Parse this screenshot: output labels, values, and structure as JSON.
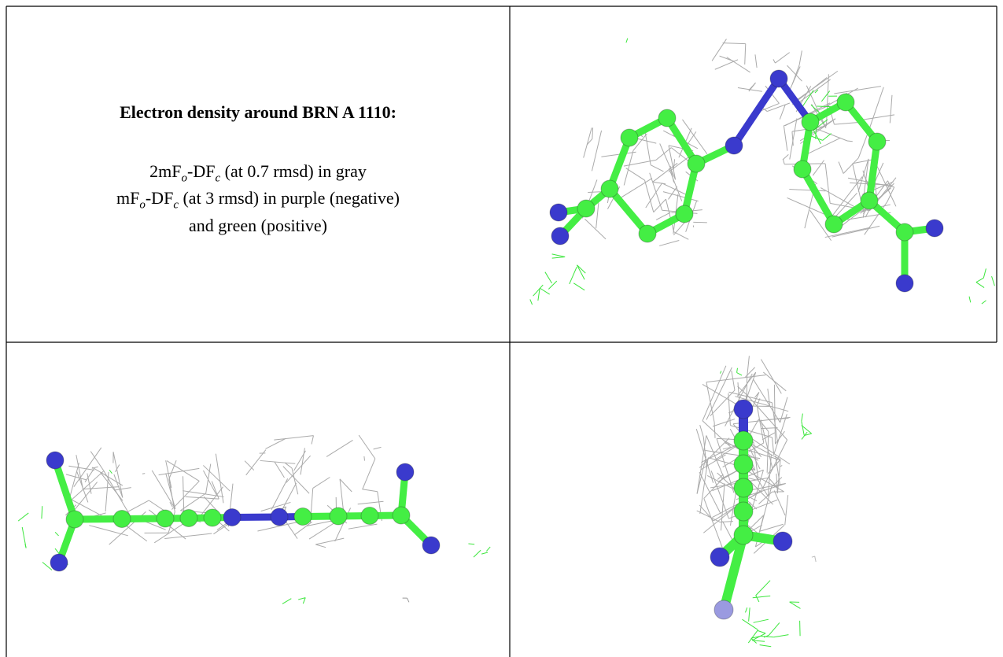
{
  "caption": {
    "title": "Electron density around BRN A 1110:",
    "lines": [
      [
        "2mF",
        "o",
        "-DF",
        "c",
        " (at 0.7 rmsd) in gray"
      ],
      [
        "mF",
        "o",
        "-DF",
        "c",
        " (at 3 rmsd) in purple (negative)"
      ],
      [
        "and green (positive)"
      ]
    ]
  }
}
